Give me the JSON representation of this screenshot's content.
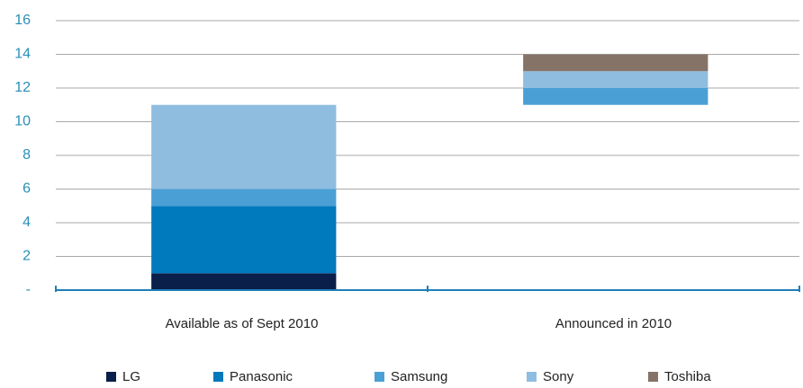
{
  "chart_data": {
    "type": "waterfall",
    "categories": [
      "Available as of Sept 2010",
      "Announced in 2010"
    ],
    "series": [
      {
        "name": "LG",
        "color": "#0b1f4b",
        "values": [
          1,
          0
        ]
      },
      {
        "name": "Panasonic",
        "color": "#0079bd",
        "values": [
          4,
          0
        ]
      },
      {
        "name": "Samsung",
        "color": "#4aa0d5",
        "values": [
          1,
          1
        ]
      },
      {
        "name": "Sony",
        "color": "#8fbde0",
        "values": [
          5,
          1
        ]
      },
      {
        "name": "Toshiba",
        "color": "#857368",
        "values": [
          0,
          1
        ]
      }
    ],
    "ylim": [
      0,
      16
    ],
    "yticks": [
      {
        "value": 0,
        "label": "-"
      },
      2,
      4,
      6,
      8,
      10,
      12,
      14,
      16
    ],
    "grid": true
  }
}
